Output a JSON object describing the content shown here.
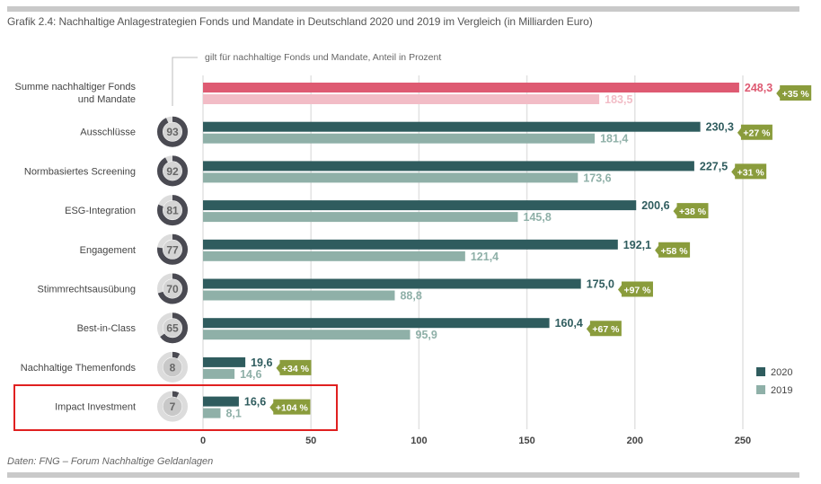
{
  "title": "Grafik 2.4: Nachhaltige Anlagestrategien Fonds und Mandate in Deutschland 2020 und 2019 im Vergleich (in Milliarden Euro)",
  "source": "Daten: FNG – Forum Nachhaltige Geldanlagen",
  "colors": {
    "series_2020": "#2f5c5e",
    "series_2019": "#8fb0a8",
    "total_2020": "#de5a72",
    "total_2019": "#f2bcc6",
    "badge": "#8a9c3c",
    "donut_dark": "#4a4a52",
    "donut_light": "#dcdcdc",
    "highlight": "#e02020"
  },
  "chart_data": {
    "type": "bar",
    "orientation": "horizontal",
    "title": "Grafik 2.4: Nachhaltige Anlagestrategien Fonds und Mandate in Deutschland 2020 und 2019 im Vergleich (in Milliarden Euro)",
    "note": "gilt für nachhaltige Fonds und Mandate, Anteil in Prozent",
    "categories": [
      "Summe nachhaltiger Fonds und Mandate",
      "Ausschlüsse",
      "Normbasiertes Screening",
      "ESG-Integration",
      "Engagement",
      "Stimmrechtsausübung",
      "Best-in-Class",
      "Nachhaltige Themenfonds",
      "Impact Investment"
    ],
    "series": [
      {
        "name": "2020",
        "values": [
          248.3,
          230.3,
          227.5,
          200.6,
          192.1,
          175.0,
          160.4,
          19.6,
          16.6
        ],
        "labels": [
          "248,3",
          "230,3",
          "227,5",
          "200,6",
          "192,1",
          "175,0",
          "160,4",
          "19,6",
          "16,6"
        ]
      },
      {
        "name": "2019",
        "values": [
          183.5,
          181.4,
          173.6,
          145.8,
          121.4,
          88.8,
          95.9,
          14.6,
          8.1
        ],
        "labels": [
          "183,5",
          "181,4",
          "173,6",
          "145,8",
          "121,4",
          "88,8",
          "95,9",
          "14,6",
          "8,1"
        ]
      }
    ],
    "growth": [
      "+35 %",
      "+27 %",
      "+31 %",
      "+38 %",
      "+58 %",
      "+97 %",
      "+67 %",
      "+34 %",
      "+104 %"
    ],
    "share_percent": [
      null,
      93,
      92,
      81,
      77,
      70,
      65,
      8,
      7
    ],
    "xlim": [
      0,
      250
    ],
    "xticks": [
      "0",
      "50",
      "100",
      "150",
      "200",
      "250"
    ],
    "xtick_values": [
      0,
      50,
      100,
      150,
      200,
      250
    ],
    "grid": true,
    "legend": [
      "2020",
      "2019"
    ],
    "legend_position": "bottom-right",
    "highlighted_category": "Impact Investment"
  }
}
